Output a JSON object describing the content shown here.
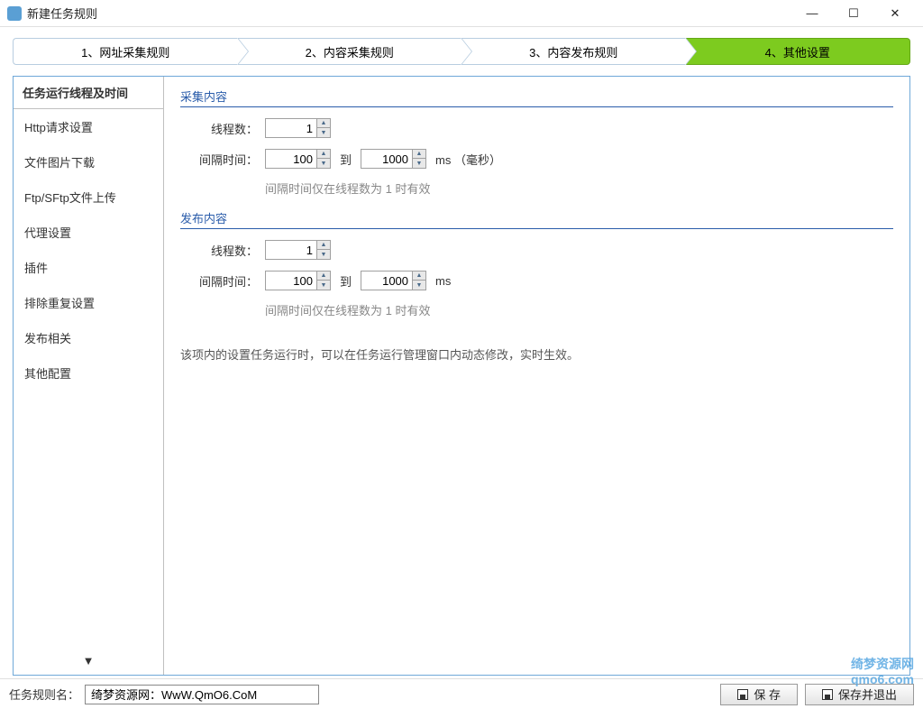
{
  "window": {
    "title": "新建任务规则"
  },
  "steps": [
    {
      "label": "1、网址采集规则"
    },
    {
      "label": "2、内容采集规则"
    },
    {
      "label": "3、内容发布规则"
    },
    {
      "label": "4、其他设置",
      "active": true
    }
  ],
  "sidebar": {
    "header": "任务运行线程及时间",
    "items": [
      "Http请求设置",
      "文件图片下载",
      "Ftp/SFtp文件上传",
      "代理设置",
      "插件",
      "排除重复设置",
      "发布相关",
      "其他配置"
    ]
  },
  "form": {
    "collect": {
      "title": "采集内容",
      "threads_label": "线程数：",
      "threads_value": "1",
      "interval_label": "间隔时间：",
      "interval_from": "100",
      "to_label": "到",
      "interval_to": "1000",
      "unit": "ms （毫秒）",
      "hint": "间隔时间仅在线程数为 1 时有效"
    },
    "publish": {
      "title": "发布内容",
      "threads_label": "线程数：",
      "threads_value": "1",
      "interval_label": "间隔时间：",
      "interval_from": "100",
      "to_label": "到",
      "interval_to": "1000",
      "unit": "ms",
      "hint": "间隔时间仅在线程数为 1 时有效"
    },
    "footnote": "该项内的设置任务运行时，可以在任务运行管理窗口内动态修改，实时生效。"
  },
  "bottom": {
    "label": "任务规则名：",
    "value": "绮梦资源网：WwW.QmO6.CoM",
    "save": "保 存",
    "save_exit": "保存并退出"
  },
  "watermark": {
    "line1": "绮梦资源网",
    "line2": "qmo6.com"
  },
  "colors": {
    "accent_border": "#6fa8d8",
    "active_step": "#7dcb1f",
    "section_title": "#2a5caa"
  }
}
